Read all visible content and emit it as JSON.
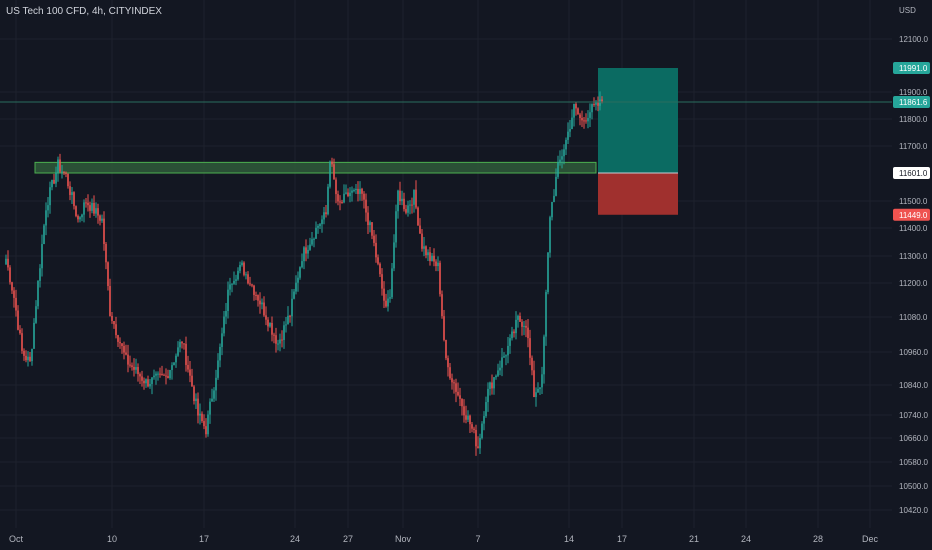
{
  "header": {
    "title": "US Tech 100 CFD, 4h, CITYINDEX"
  },
  "colors": {
    "background": "#131722",
    "grid": "#1e222d",
    "text": "#b2b5be",
    "bull": "#26a69a",
    "bear": "#ef5350",
    "profit_zone": "#0b6b62",
    "loss_zone": "#a0302e",
    "resistance_zone": "#2f5a3a",
    "resistance_border": "#4caf50",
    "price_line": "#2a6d5d"
  },
  "chart_data": {
    "type": "candlestick",
    "symbol": "US Tech 100 CFD",
    "interval": "4h",
    "source": "CITYINDEX",
    "currency": "USD",
    "y_axis": {
      "label": "USD",
      "ticks": [
        "12100.0",
        "11900.0",
        "11800.0",
        "11700.0",
        "11500.0",
        "11400.0",
        "11300.0",
        "11200.0",
        "11080.0",
        "10960.0",
        "10840.0",
        "10740.0",
        "10660.0",
        "10580.0",
        "10500.0",
        "10420.0"
      ],
      "range": [
        10380,
        12200
      ]
    },
    "x_axis": {
      "ticks": [
        "Oct",
        "10",
        "17",
        "24",
        "27",
        "Nov",
        "7",
        "14",
        "17",
        "21",
        "24",
        "28",
        "Dec"
      ]
    },
    "price_labels": {
      "take_profit": "11991.0",
      "last_price": "11861.6",
      "entry": "11601.0",
      "stop_loss": "11449.0"
    },
    "resistance_zone": {
      "low": 11601,
      "high": 11640
    },
    "position": {
      "entry": 11601.0,
      "take_profit": 11991.0,
      "stop_loss": 11449.0
    },
    "key_points": [
      [
        0,
        11290
      ],
      [
        4,
        11150
      ],
      [
        8,
        10960
      ],
      [
        12,
        10920
      ],
      [
        20,
        11480
      ],
      [
        26,
        11630
      ],
      [
        30,
        11590
      ],
      [
        36,
        11430
      ],
      [
        40,
        11500
      ],
      [
        48,
        11430
      ],
      [
        52,
        11100
      ],
      [
        60,
        10930
      ],
      [
        70,
        10850
      ],
      [
        80,
        10870
      ],
      [
        88,
        11000
      ],
      [
        96,
        10740
      ],
      [
        100,
        10690
      ],
      [
        106,
        10920
      ],
      [
        112,
        11210
      ],
      [
        118,
        11260
      ],
      [
        126,
        11150
      ],
      [
        136,
        10990
      ],
      [
        142,
        11090
      ],
      [
        148,
        11300
      ],
      [
        156,
        11410
      ],
      [
        160,
        11450
      ],
      [
        162,
        11660
      ],
      [
        166,
        11480
      ],
      [
        172,
        11530
      ],
      [
        178,
        11520
      ],
      [
        184,
        11340
      ],
      [
        190,
        11100
      ],
      [
        192,
        11170
      ],
      [
        196,
        11530
      ],
      [
        200,
        11470
      ],
      [
        204,
        11520
      ],
      [
        208,
        11340
      ],
      [
        212,
        11290
      ],
      [
        216,
        11260
      ],
      [
        220,
        10920
      ],
      [
        226,
        10810
      ],
      [
        232,
        10710
      ],
      [
        236,
        10630
      ],
      [
        240,
        10800
      ],
      [
        246,
        10900
      ],
      [
        252,
        10990
      ],
      [
        256,
        11070
      ],
      [
        260,
        11060
      ],
      [
        264,
        10810
      ],
      [
        268,
        10860
      ],
      [
        272,
        11450
      ],
      [
        276,
        11620
      ],
      [
        280,
        11720
      ],
      [
        284,
        11840
      ],
      [
        288,
        11790
      ],
      [
        292,
        11830
      ],
      [
        298,
        11860
      ]
    ]
  }
}
